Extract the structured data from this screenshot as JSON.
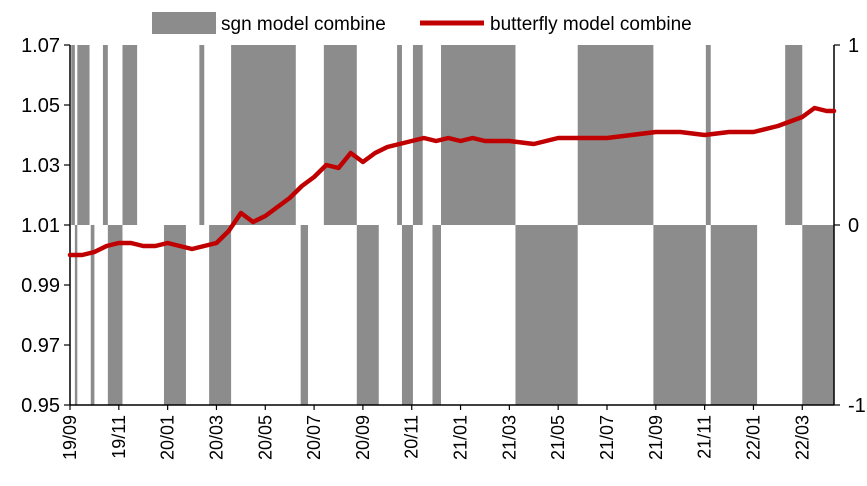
{
  "chart_data": {
    "type": "area+line",
    "legend": {
      "placement": "top",
      "entries": [
        {
          "name": "sgn model combine",
          "color": "#8c8c8c",
          "kind": "area"
        },
        {
          "name": "butterfly model combine",
          "color": "#c00000",
          "kind": "line"
        }
      ]
    },
    "x_ticks": [
      "19/09",
      "19/11",
      "20/01",
      "20/03",
      "20/05",
      "20/07",
      "20/09",
      "20/11",
      "21/01",
      "21/03",
      "21/05",
      "21/07",
      "21/09",
      "21/11",
      "22/01",
      "22/03"
    ],
    "y_left": {
      "ylim": [
        0.95,
        1.07
      ],
      "ticks": [
        "1.07",
        "1.05",
        "1.03",
        "1.01",
        "0.99",
        "0.97",
        "0.95"
      ]
    },
    "y_right": {
      "ylim": [
        -1,
        1
      ],
      "ticks": [
        "1",
        "0",
        "-1"
      ]
    },
    "x_range_months": [
      0,
      31.3
    ],
    "series": [
      {
        "name": "sgn model combine",
        "axis": "right",
        "segments": [
          {
            "start": 0.05,
            "end": 0.2,
            "value": 1
          },
          {
            "start": 0.2,
            "end": 0.3,
            "value": -1
          },
          {
            "start": 0.3,
            "end": 0.8,
            "value": 1
          },
          {
            "start": 0.8,
            "end": 0.85,
            "value": 0
          },
          {
            "start": 0.85,
            "end": 1.0,
            "value": -1
          },
          {
            "start": 1.0,
            "end": 1.35,
            "value": 0
          },
          {
            "start": 1.35,
            "end": 1.55,
            "value": 1
          },
          {
            "start": 1.55,
            "end": 2.15,
            "value": -1
          },
          {
            "start": 2.15,
            "end": 2.75,
            "value": 1
          },
          {
            "start": 2.75,
            "end": 3.85,
            "value": 0
          },
          {
            "start": 3.85,
            "end": 4.75,
            "value": -1
          },
          {
            "start": 4.75,
            "end": 5.3,
            "value": 0
          },
          {
            "start": 5.3,
            "end": 5.5,
            "value": 1
          },
          {
            "start": 5.5,
            "end": 5.7,
            "value": 0
          },
          {
            "start": 5.7,
            "end": 6.6,
            "value": -1
          },
          {
            "start": 6.6,
            "end": 9.25,
            "value": 1
          },
          {
            "start": 9.25,
            "end": 9.45,
            "value": 0
          },
          {
            "start": 9.45,
            "end": 9.75,
            "value": -1
          },
          {
            "start": 9.75,
            "end": 10.4,
            "value": 0
          },
          {
            "start": 10.4,
            "end": 11.75,
            "value": 1
          },
          {
            "start": 11.75,
            "end": 12.65,
            "value": -1
          },
          {
            "start": 12.65,
            "end": 13.4,
            "value": 0
          },
          {
            "start": 13.4,
            "end": 13.6,
            "value": 1
          },
          {
            "start": 13.6,
            "end": 14.05,
            "value": -1
          },
          {
            "start": 14.05,
            "end": 14.45,
            "value": 1
          },
          {
            "start": 14.45,
            "end": 14.85,
            "value": 0
          },
          {
            "start": 14.85,
            "end": 15.2,
            "value": -1
          },
          {
            "start": 15.2,
            "end": 18.25,
            "value": 1
          },
          {
            "start": 18.25,
            "end": 20.8,
            "value": -1
          },
          {
            "start": 20.8,
            "end": 23.9,
            "value": 1
          },
          {
            "start": 23.9,
            "end": 26.05,
            "value": -1
          },
          {
            "start": 26.05,
            "end": 26.25,
            "value": 1
          },
          {
            "start": 26.25,
            "end": 28.15,
            "value": -1
          },
          {
            "start": 28.15,
            "end": 29.3,
            "value": 0
          },
          {
            "start": 29.3,
            "end": 30.0,
            "value": 1
          },
          {
            "start": 30.0,
            "end": 31.3,
            "value": -1
          }
        ]
      },
      {
        "name": "butterfly model combine",
        "axis": "left",
        "x": [
          0,
          0.5,
          1,
          1.5,
          2,
          2.5,
          3,
          3.5,
          4,
          4.5,
          5,
          5.5,
          6,
          6.5,
          7,
          7.5,
          8,
          8.5,
          9,
          9.5,
          10,
          10.5,
          11,
          11.5,
          12,
          12.5,
          13,
          13.5,
          14,
          14.5,
          15,
          15.5,
          16,
          16.5,
          17,
          18,
          19,
          20,
          21,
          22,
          23,
          24,
          25,
          26,
          27,
          28,
          29,
          30,
          30.5,
          31,
          31.3
        ],
        "y": [
          1.0,
          1.0,
          1.001,
          1.003,
          1.004,
          1.004,
          1.003,
          1.003,
          1.004,
          1.003,
          1.002,
          1.003,
          1.004,
          1.008,
          1.014,
          1.011,
          1.013,
          1.016,
          1.019,
          1.023,
          1.026,
          1.03,
          1.029,
          1.034,
          1.031,
          1.034,
          1.036,
          1.037,
          1.038,
          1.039,
          1.038,
          1.039,
          1.038,
          1.039,
          1.038,
          1.038,
          1.037,
          1.039,
          1.039,
          1.039,
          1.04,
          1.041,
          1.041,
          1.04,
          1.041,
          1.041,
          1.043,
          1.046,
          1.049,
          1.048,
          1.048
        ]
      }
    ]
  }
}
